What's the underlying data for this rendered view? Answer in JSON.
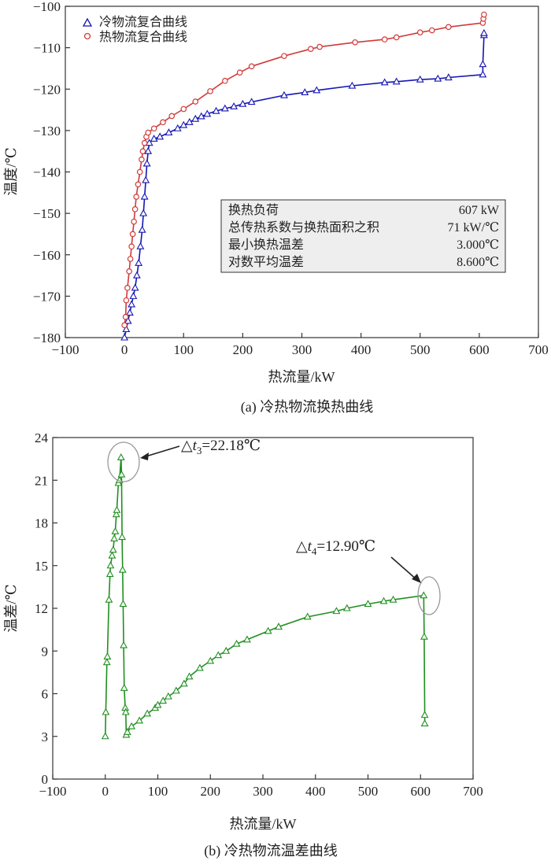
{
  "charts": [
    {
      "type": "line",
      "caption": "(a) 冷热物流换热曲线",
      "xlabel": "热流量/kW",
      "ylabel": "温度/℃",
      "xlim": [
        -100,
        700
      ],
      "ylim": [
        -180,
        -100
      ],
      "xticks": [
        "−100",
        "0",
        "100",
        "200",
        "300",
        "400",
        "500",
        "600",
        "700"
      ],
      "yticks": [
        "−180",
        "−170",
        "−160",
        "−150",
        "−140",
        "−130",
        "−120",
        "−110",
        "−100"
      ],
      "legend": {
        "position": "top-left"
      },
      "series": [
        {
          "name": "冷物流复合曲线",
          "color": "#1515b4",
          "marker": "triangle",
          "points": [
            [
              0,
              -180
            ],
            [
              3,
              -178
            ],
            [
              6,
              -176
            ],
            [
              9,
              -174
            ],
            [
              12,
              -172
            ],
            [
              15,
              -170
            ],
            [
              18,
              -168
            ],
            [
              21,
              -165
            ],
            [
              24,
              -162
            ],
            [
              27,
              -158
            ],
            [
              30,
              -154
            ],
            [
              32,
              -150
            ],
            [
              34,
              -146
            ],
            [
              36,
              -142
            ],
            [
              38,
              -138
            ],
            [
              40,
              -135
            ],
            [
              42,
              -133
            ],
            [
              50,
              -132
            ],
            [
              60,
              -131.5
            ],
            [
              75,
              -130.5
            ],
            [
              90,
              -129.5
            ],
            [
              100,
              -128.7
            ],
            [
              110,
              -128
            ],
            [
              120,
              -127.2
            ],
            [
              130,
              -126.6
            ],
            [
              140,
              -126
            ],
            [
              155,
              -125.3
            ],
            [
              170,
              -124.7
            ],
            [
              185,
              -124.2
            ],
            [
              200,
              -123.6
            ],
            [
              215,
              -123.1
            ],
            [
              270,
              -121.5
            ],
            [
              305,
              -120.8
            ],
            [
              325,
              -120.3
            ],
            [
              385,
              -119.2
            ],
            [
              440,
              -118.4
            ],
            [
              460,
              -118.2
            ],
            [
              500,
              -117.7
            ],
            [
              530,
              -117.5
            ],
            [
              548,
              -117.2
            ],
            [
              606,
              -116.5
            ],
            [
              606,
              -114
            ],
            [
              608,
              -107
            ],
            [
              608,
              -106.5
            ]
          ]
        },
        {
          "name": "热物流复合曲线",
          "color": "#d03a3a",
          "marker": "circle",
          "points": [
            [
              0,
              -177
            ],
            [
              2,
              -175
            ],
            [
              3,
              -171
            ],
            [
              5,
              -168
            ],
            [
              8,
              -164
            ],
            [
              10,
              -161
            ],
            [
              12,
              -158
            ],
            [
              14,
              -155
            ],
            [
              16,
              -152
            ],
            [
              18,
              -149
            ],
            [
              20,
              -146
            ],
            [
              23,
              -143
            ],
            [
              26,
              -140
            ],
            [
              29,
              -137
            ],
            [
              31,
              -135
            ],
            [
              34,
              -133
            ],
            [
              37,
              -131.5
            ],
            [
              40,
              -130.5
            ],
            [
              50,
              -129.5
            ],
            [
              65,
              -128
            ],
            [
              80,
              -126.5
            ],
            [
              100,
              -124.8
            ],
            [
              120,
              -123
            ],
            [
              145,
              -120.5
            ],
            [
              170,
              -118
            ],
            [
              195,
              -116
            ],
            [
              215,
              -114.5
            ],
            [
              270,
              -112
            ],
            [
              315,
              -110.3
            ],
            [
              330,
              -109.8
            ],
            [
              390,
              -108.7
            ],
            [
              440,
              -108
            ],
            [
              460,
              -107.5
            ],
            [
              500,
              -106.3
            ],
            [
              520,
              -105.8
            ],
            [
              548,
              -105
            ],
            [
              606,
              -104
            ],
            [
              607,
              -103
            ],
            [
              608,
              -102
            ]
          ]
        }
      ],
      "info_box": [
        {
          "label": "换热负荷",
          "value": "607 kW"
        },
        {
          "label": "总传热系数与换热面积之积",
          "value": "71 kW/℃"
        },
        {
          "label": "最小换热温差",
          "value": "3.000℃"
        },
        {
          "label": "对数平均温差",
          "value": "8.600℃"
        }
      ]
    },
    {
      "type": "line",
      "caption": "(b) 冷热物流温差曲线",
      "xlabel": "热流量/kW",
      "ylabel": "温差/℃",
      "xlim": [
        -100,
        700
      ],
      "ylim": [
        0,
        24
      ],
      "xticks": [
        "−100",
        "0",
        "100",
        "200",
        "300",
        "400",
        "500",
        "600",
        "700"
      ],
      "yticks": [
        "0",
        "3",
        "6",
        "9",
        "12",
        "15",
        "18",
        "21",
        "24"
      ],
      "series": [
        {
          "name": "",
          "color": "#1f8f1f",
          "marker": "triangle",
          "points": [
            [
              0,
              3
            ],
            [
              1,
              4.7
            ],
            [
              3,
              8.2
            ],
            [
              4,
              8.6
            ],
            [
              7,
              12.6
            ],
            [
              9,
              14.4
            ],
            [
              10,
              15
            ],
            [
              13,
              15.7
            ],
            [
              15,
              16.1
            ],
            [
              17,
              16.9
            ],
            [
              19,
              17.4
            ],
            [
              21,
              18.6
            ],
            [
              22,
              18.9
            ],
            [
              25,
              20.8
            ],
            [
              27,
              21
            ],
            [
              30,
              22.6
            ],
            [
              31,
              21.4
            ],
            [
              32,
              17
            ],
            [
              33,
              14.7
            ],
            [
              34,
              12.3
            ],
            [
              35,
              9.4
            ],
            [
              36,
              6.4
            ],
            [
              38,
              5.0
            ],
            [
              39,
              4.7
            ],
            [
              40,
              3.1
            ],
            [
              42,
              3.3
            ],
            [
              50,
              3.7
            ],
            [
              65,
              4.1
            ],
            [
              80,
              4.6
            ],
            [
              95,
              5.0
            ],
            [
              100,
              5.2
            ],
            [
              110,
              5.5
            ],
            [
              120,
              5.8
            ],
            [
              135,
              6.2
            ],
            [
              150,
              6.7
            ],
            [
              160,
              7.2
            ],
            [
              180,
              7.8
            ],
            [
              200,
              8.3
            ],
            [
              215,
              8.7
            ],
            [
              230,
              9.0
            ],
            [
              250,
              9.5
            ],
            [
              270,
              9.8
            ],
            [
              310,
              10.4
            ],
            [
              330,
              10.7
            ],
            [
              385,
              11.4
            ],
            [
              440,
              11.8
            ],
            [
              460,
              12.0
            ],
            [
              500,
              12.3
            ],
            [
              530,
              12.5
            ],
            [
              548,
              12.6
            ],
            [
              606,
              12.9
            ],
            [
              607,
              10.0
            ],
            [
              608,
              4.5
            ],
            [
              608,
              3.9
            ]
          ]
        }
      ],
      "annotations": [
        {
          "text_prefix": "△",
          "var": "t",
          "sub": "3",
          "text_suffix": "=22.18℃"
        },
        {
          "text_prefix": "△",
          "var": "t",
          "sub": "4",
          "text_suffix": "=12.90℃"
        }
      ]
    }
  ]
}
